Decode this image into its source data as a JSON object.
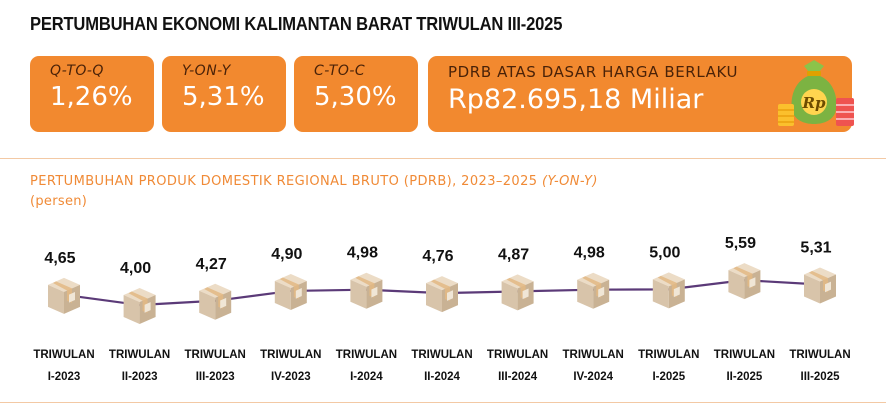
{
  "page": {
    "title": "PERTUMBUHAN EKONOMI KALIMANTAN BARAT TRIWULAN III-2025"
  },
  "cards": {
    "qtoq": {
      "label": "Q-TO-Q",
      "value": "1,26%"
    },
    "yony": {
      "label": "Y-ON-Y",
      "value": "5,31%"
    },
    "ctoc": {
      "label": "C-TO-C",
      "value": "5,30%"
    },
    "pdrb": {
      "label": "PDRB ATAS DASAR HARGA BERLAKU",
      "value": "Rp82.695,18 Miliar",
      "icon": "money-bag-icon"
    }
  },
  "colors": {
    "accent": "#f2892f",
    "line": "#5b3a78",
    "label_dark": "#4a2208"
  },
  "chart_data": {
    "type": "line",
    "title_main": "PERTUMBUHAN PRODUK DOMESTIK REGIONAL BRUTO (PDRB), 2023–2025 ",
    "title_italic": "(Y-ON-Y)",
    "unit": "(persen)",
    "categories": [
      [
        "TRIWULAN",
        "I-2023"
      ],
      [
        "TRIWULAN",
        "II-2023"
      ],
      [
        "TRIWULAN",
        "III-2023"
      ],
      [
        "TRIWULAN",
        "IV-2023"
      ],
      [
        "TRIWULAN",
        "I-2024"
      ],
      [
        "TRIWULAN",
        "II-2024"
      ],
      [
        "TRIWULAN",
        "III-2024"
      ],
      [
        "TRIWULAN",
        "IV-2024"
      ],
      [
        "TRIWULAN",
        "I-2025"
      ],
      [
        "TRIWULAN",
        "II-2025"
      ],
      [
        "TRIWULAN",
        "III-2025"
      ]
    ],
    "values": [
      4.65,
      4.0,
      4.27,
      4.9,
      4.98,
      4.76,
      4.87,
      4.98,
      5.0,
      5.59,
      5.31
    ],
    "value_labels": [
      "4,65",
      "4,00",
      "4,27",
      "4,90",
      "4,98",
      "4,76",
      "4,87",
      "4,98",
      "5,00",
      "5,59",
      "5,31"
    ],
    "marker": "box-icon"
  }
}
